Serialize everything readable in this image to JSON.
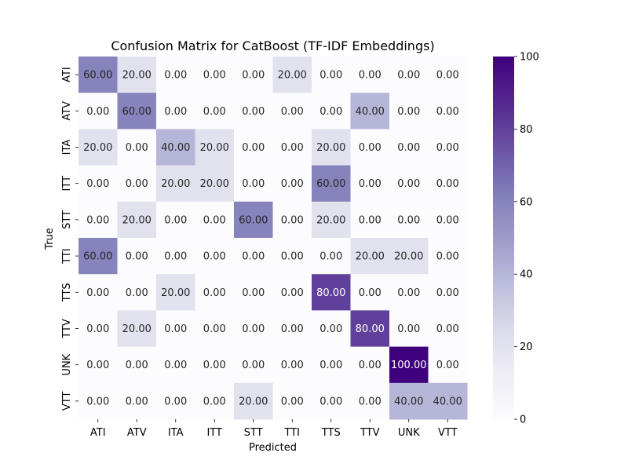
{
  "chart_data": {
    "type": "heatmap",
    "title": "Confusion Matrix for CatBoost (TF-IDF Embeddings)",
    "xlabel": "Predicted",
    "ylabel": "True",
    "x_categories": [
      "ATI",
      "ATV",
      "ITA",
      "ITT",
      "STT",
      "TTI",
      "TTS",
      "TTV",
      "UNK",
      "VTT"
    ],
    "y_categories": [
      "ATI",
      "ATV",
      "ITA",
      "ITT",
      "STT",
      "TTI",
      "TTS",
      "TTV",
      "UNK",
      "VTT"
    ],
    "values": [
      [
        60,
        20,
        0,
        0,
        0,
        20,
        0,
        0,
        0,
        0
      ],
      [
        0,
        60,
        0,
        0,
        0,
        0,
        0,
        40,
        0,
        0
      ],
      [
        20,
        0,
        40,
        20,
        0,
        0,
        20,
        0,
        0,
        0
      ],
      [
        0,
        0,
        20,
        20,
        0,
        0,
        60,
        0,
        0,
        0
      ],
      [
        0,
        20,
        0,
        0,
        60,
        0,
        20,
        0,
        0,
        0
      ],
      [
        60,
        0,
        0,
        0,
        0,
        0,
        0,
        20,
        20,
        0
      ],
      [
        0,
        0,
        20,
        0,
        0,
        0,
        80,
        0,
        0,
        0
      ],
      [
        0,
        20,
        0,
        0,
        0,
        0,
        0,
        80,
        0,
        0
      ],
      [
        0,
        0,
        0,
        0,
        0,
        0,
        0,
        0,
        100,
        0
      ],
      [
        0,
        0,
        0,
        0,
        20,
        0,
        0,
        0,
        40,
        40
      ]
    ],
    "value_range": [
      0,
      100
    ],
    "colorbar_ticks": [
      0,
      20,
      40,
      60,
      80,
      100
    ],
    "colormap": "Purples",
    "colormap_low": "#fcfbfd",
    "colormap_high": "#3f007d",
    "label_format_decimals": 2,
    "grid": false,
    "legend": "colorbar-right"
  }
}
